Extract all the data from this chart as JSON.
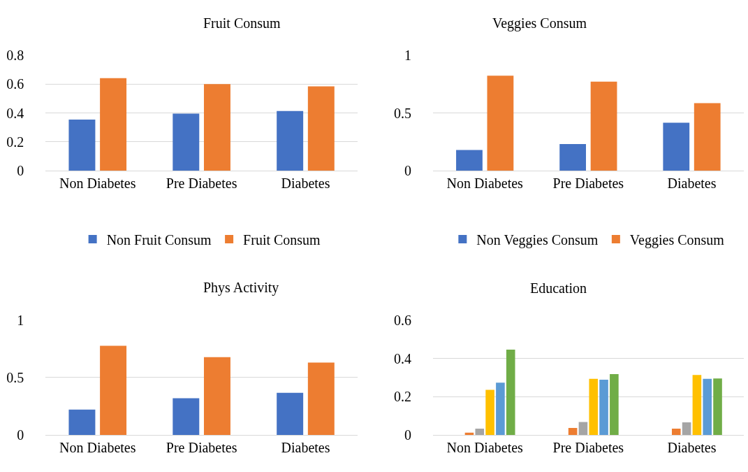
{
  "chart_data": [
    {
      "type": "bar",
      "title": "Fruit Consum",
      "categories": [
        "Non Diabetes",
        "Pre Diabetes",
        "Diabetes"
      ],
      "series": [
        {
          "name": "Non Fruit Consum",
          "color": "#4472c4",
          "values": [
            0.354,
            0.395,
            0.413
          ]
        },
        {
          "name": "Fruit Consum",
          "color": "#ed7d31",
          "values": [
            0.641,
            0.6,
            0.584
          ]
        }
      ],
      "ylim": [
        0,
        0.8
      ],
      "yticks": [
        0,
        0.2,
        0.4,
        0.6,
        0.8
      ],
      "grid": "y",
      "legend": "bottom"
    },
    {
      "type": "bar",
      "title": "Veggies Consum",
      "categories": [
        "Non Diabetes",
        "Pre Diabetes",
        "Diabetes"
      ],
      "series": [
        {
          "name": "Non Veggies Consum",
          "color": "#4472c4",
          "values": [
            0.18,
            0.231,
            0.415
          ]
        },
        {
          "name": "Veggies Consum",
          "color": "#ed7d31",
          "values": [
            0.822,
            0.771,
            0.585
          ]
        }
      ],
      "ylim": [
        0,
        1
      ],
      "yticks": [
        0,
        0.5,
        1
      ],
      "grid": "y",
      "legend": "bottom"
    },
    {
      "type": "bar",
      "title": "Phys Activity",
      "categories": [
        "Non Diabetes",
        "Pre Diabetes",
        "Diabetes"
      ],
      "series": [
        {
          "color": "#4472c4",
          "values": [
            0.222,
            0.321,
            0.368
          ]
        },
        {
          "color": "#ed7d31",
          "values": [
            0.776,
            0.677,
            0.63
          ]
        }
      ],
      "ylim": [
        0,
        1
      ],
      "yticks": [
        0,
        0.5,
        1
      ],
      "grid": "y"
    },
    {
      "type": "bar",
      "title": "Education",
      "categories": [
        "Non Diabetes",
        "Pre Diabetes",
        "Diabetes"
      ],
      "series": [
        {
          "color": "#4472c4",
          "values": [
            0,
            0,
            0
          ]
        },
        {
          "color": "#ed7d31",
          "values": [
            0.013,
            0.037,
            0.034
          ]
        },
        {
          "color": "#a5a5a5",
          "values": [
            0.034,
            0.068,
            0.066
          ]
        },
        {
          "color": "#ffc000",
          "values": [
            0.236,
            0.293,
            0.313
          ]
        },
        {
          "color": "#5b9bd5",
          "values": [
            0.273,
            0.289,
            0.293
          ]
        },
        {
          "color": "#70ad47",
          "values": [
            0.446,
            0.318,
            0.295
          ]
        }
      ],
      "ylim": [
        0,
        0.6
      ],
      "yticks": [
        0,
        0.2,
        0.4,
        0.6
      ],
      "grid": "y"
    }
  ]
}
